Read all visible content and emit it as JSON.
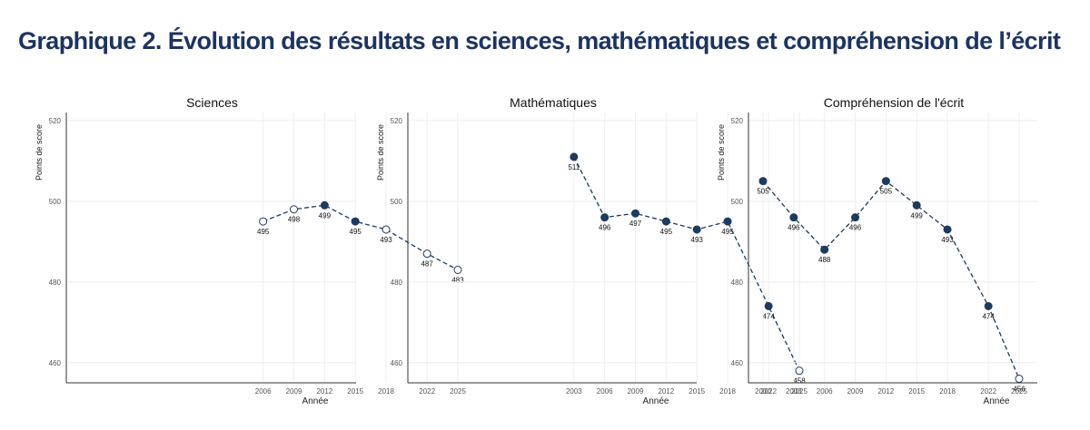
{
  "page": {
    "title": "Graphique 2. Évolution des résultats en sciences, mathématiques et compréhension de l’écrit"
  },
  "colors": {
    "title": "#1d3461",
    "series": "#1f3a5f",
    "open_marker_fill": "#ffffff",
    "axis": "#333333",
    "grid": "#eeeeee"
  },
  "chart_data": [
    {
      "type": "line",
      "title": "Sciences",
      "xlabel": "Année",
      "ylabel": "Points de score",
      "ylim": [
        455,
        522
      ],
      "yticks": [
        460,
        480,
        500,
        520
      ],
      "grid": true,
      "line_style": "dashed",
      "x": [
        "2006",
        "2009",
        "2012",
        "2015",
        "2018",
        "2022",
        "2025"
      ],
      "x_years": [
        2006,
        2009,
        2012,
        2015,
        2018,
        2022,
        2025
      ],
      "values": [
        495,
        498,
        499,
        495,
        493,
        487,
        483
      ],
      "labels": [
        "495",
        "498",
        "499",
        "495",
        "493",
        "487",
        "483"
      ],
      "markers": [
        "open",
        "open",
        "filled",
        "filled",
        "open",
        "open",
        "open"
      ]
    },
    {
      "type": "line",
      "title": "Mathématiques",
      "xlabel": "Année",
      "ylabel": "Points de score",
      "ylim": [
        455,
        522
      ],
      "yticks": [
        460,
        480,
        500,
        520
      ],
      "grid": true,
      "line_style": "dashed",
      "x": [
        "2003",
        "2006",
        "2009",
        "2012",
        "2015",
        "2018",
        "2022",
        "2025"
      ],
      "x_years": [
        2003,
        2006,
        2009,
        2012,
        2015,
        2018,
        2022,
        2025
      ],
      "values": [
        511,
        496,
        497,
        495,
        493,
        495,
        474,
        458
      ],
      "labels": [
        "511",
        "496",
        "497",
        "495",
        "493",
        "495",
        "474",
        "458"
      ],
      "markers": [
        "filled",
        "filled",
        "filled",
        "filled",
        "filled",
        "filled",
        "filled",
        "open"
      ]
    },
    {
      "type": "line",
      "title": "Compréhension de l'écrit",
      "xlabel": "Année",
      "ylabel": "Points de score",
      "ylim": [
        455,
        522
      ],
      "yticks": [
        460,
        480,
        500,
        520
      ],
      "grid": true,
      "line_style": "dashed",
      "x": [
        "2000",
        "2003",
        "2006",
        "2009",
        "2012",
        "2015",
        "2018",
        "2022",
        "2025"
      ],
      "x_years": [
        2000,
        2003,
        2006,
        2009,
        2012,
        2015,
        2018,
        2022,
        2025
      ],
      "values": [
        505,
        496,
        488,
        496,
        505,
        499,
        493,
        474,
        456
      ],
      "labels": [
        "505",
        "496",
        "488",
        "496",
        "505",
        "499",
        "493",
        "474",
        "456"
      ],
      "markers": [
        "filled",
        "filled",
        "filled",
        "filled",
        "filled",
        "filled",
        "filled",
        "filled",
        "open"
      ]
    }
  ]
}
